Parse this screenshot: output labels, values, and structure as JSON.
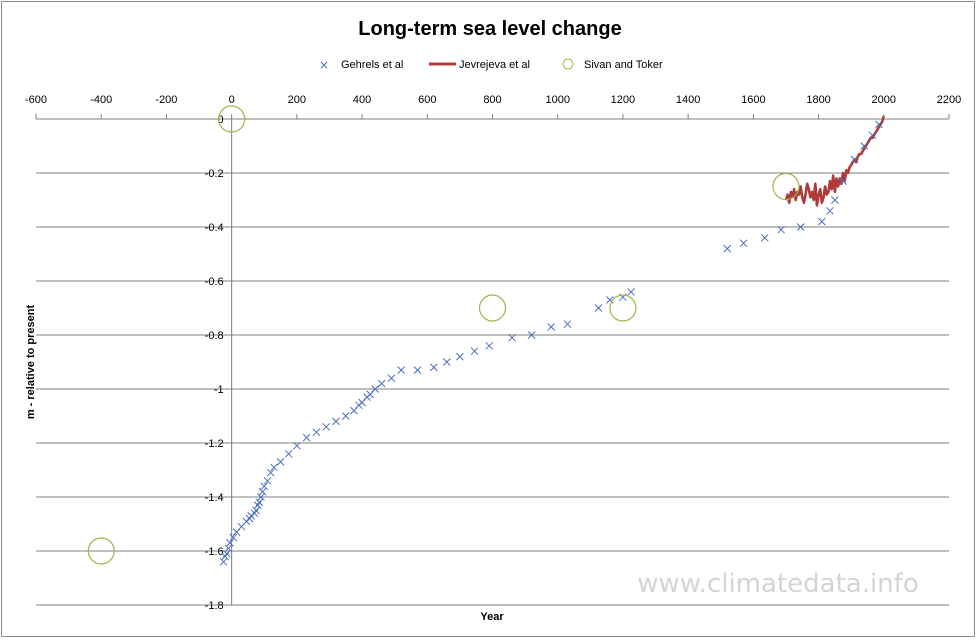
{
  "colors": {
    "gehrels": "#4a6ebf",
    "jevrejeva": "#b03a3a",
    "sivan": "#9ab84a",
    "grid": "#7f7f7f",
    "watermark": "#d4d4d4"
  },
  "watermark": "www.climatedata.info",
  "chart_data": {
    "type": "scatter",
    "title": "Long-term sea level change",
    "xlabel": "Year",
    "ylabel": "m - relative to present",
    "xlim": [
      -600,
      2200
    ],
    "ylim": [
      -1.8,
      0
    ],
    "x_axis_position": "top",
    "y_axis_crosses_at_x": 0,
    "grid": "horizontal",
    "legend_position": "top",
    "x_ticks": [
      "-600",
      "-400",
      "-200",
      "0",
      "200",
      "400",
      "600",
      "800",
      "1000",
      "1200",
      "1400",
      "1600",
      "1800",
      "2000",
      "2200"
    ],
    "y_ticks": [
      "0",
      "-0.2",
      "-0.4",
      "-0.6",
      "-0.8",
      "-1",
      "-1.2",
      "-1.4",
      "-1.6",
      "-1.8"
    ],
    "series": [
      {
        "name": "Gehrels et al",
        "type": "scatter",
        "marker": "x",
        "x": [
          -25,
          -20,
          -15,
          -10,
          -5,
          5,
          15,
          30,
          45,
          55,
          60,
          70,
          75,
          80,
          85,
          90,
          95,
          100,
          110,
          120,
          130,
          150,
          175,
          200,
          230,
          260,
          290,
          320,
          350,
          375,
          390,
          400,
          415,
          425,
          440,
          460,
          490,
          520,
          570,
          620,
          660,
          700,
          745,
          790,
          860,
          920,
          980,
          1030,
          1125,
          1160,
          1200,
          1225,
          1520,
          1570,
          1635,
          1685,
          1745,
          1810,
          1835,
          1850,
          1875,
          1910,
          1940,
          1965,
          1985
        ],
        "y": [
          -1.64,
          -1.62,
          -1.61,
          -1.59,
          -1.57,
          -1.55,
          -1.53,
          -1.51,
          -1.49,
          -1.48,
          -1.47,
          -1.46,
          -1.45,
          -1.43,
          -1.42,
          -1.4,
          -1.38,
          -1.36,
          -1.34,
          -1.31,
          -1.29,
          -1.27,
          -1.24,
          -1.21,
          -1.18,
          -1.16,
          -1.14,
          -1.12,
          -1.1,
          -1.08,
          -1.06,
          -1.05,
          -1.03,
          -1.02,
          -1.0,
          -0.98,
          -0.96,
          -0.93,
          -0.93,
          -0.92,
          -0.9,
          -0.88,
          -0.86,
          -0.84,
          -0.81,
          -0.8,
          -0.77,
          -0.76,
          -0.7,
          -0.67,
          -0.66,
          -0.64,
          -0.48,
          -0.46,
          -0.44,
          -0.41,
          -0.4,
          -0.38,
          -0.34,
          -0.3,
          -0.23,
          -0.15,
          -0.1,
          -0.06,
          -0.02
        ]
      },
      {
        "name": "Jevrejeva et al",
        "type": "line",
        "x": [
          1700,
          1705,
          1710,
          1715,
          1720,
          1725,
          1730,
          1735,
          1740,
          1745,
          1750,
          1755,
          1760,
          1765,
          1770,
          1775,
          1780,
          1785,
          1790,
          1795,
          1800,
          1805,
          1810,
          1815,
          1820,
          1825,
          1830,
          1835,
          1840,
          1845,
          1850,
          1855,
          1860,
          1865,
          1870,
          1875,
          1880,
          1885,
          1890,
          1895,
          1900,
          1905,
          1910,
          1915,
          1920,
          1925,
          1930,
          1935,
          1940,
          1945,
          1950,
          1955,
          1960,
          1965,
          1970,
          1975,
          1980,
          1985,
          1990,
          1995,
          2000
        ],
        "y": [
          -0.3,
          -0.28,
          -0.31,
          -0.27,
          -0.29,
          -0.26,
          -0.3,
          -0.27,
          -0.28,
          -0.25,
          -0.29,
          -0.31,
          -0.28,
          -0.24,
          -0.26,
          -0.29,
          -0.27,
          -0.3,
          -0.24,
          -0.32,
          -0.28,
          -0.26,
          -0.31,
          -0.29,
          -0.25,
          -0.28,
          -0.27,
          -0.23,
          -0.26,
          -0.21,
          -0.27,
          -0.22,
          -0.25,
          -0.22,
          -0.24,
          -0.2,
          -0.23,
          -0.19,
          -0.2,
          -0.18,
          -0.17,
          -0.16,
          -0.15,
          -0.16,
          -0.14,
          -0.13,
          -0.13,
          -0.12,
          -0.11,
          -0.1,
          -0.09,
          -0.08,
          -0.07,
          -0.07,
          -0.06,
          -0.05,
          -0.04,
          -0.03,
          -0.02,
          -0.01,
          0.01
        ]
      },
      {
        "name": "Sivan and Toker",
        "type": "scatter",
        "marker": "circle",
        "x": [
          -400,
          0,
          800,
          1200,
          1700
        ],
        "y": [
          -1.6,
          0,
          -0.7,
          -0.7,
          -0.25
        ]
      }
    ]
  }
}
